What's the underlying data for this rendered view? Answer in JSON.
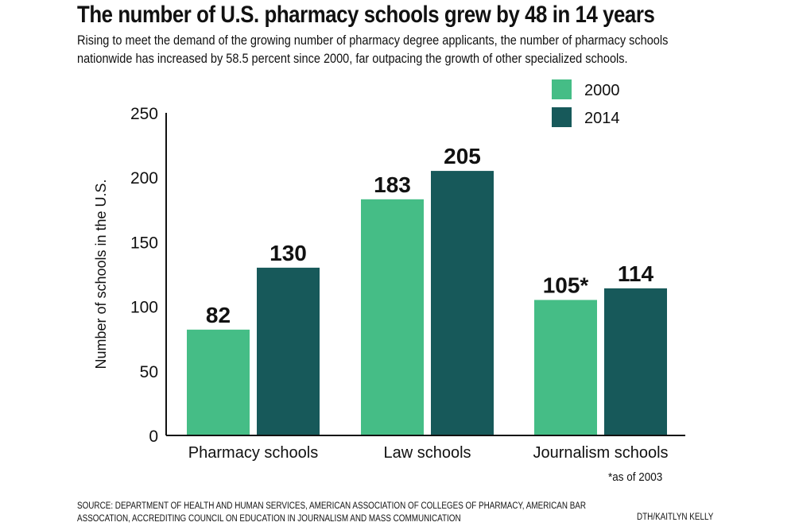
{
  "header": {
    "title": "The number of U.S. pharmacy schools grew by 48 in 14 years",
    "subtitle": "Rising to meet the demand of the growing number of pharmacy degree applicants, the number of pharmacy schools nationwide has increased by 58.5 percent since 2000, far outpacing the growth of other specialized schools."
  },
  "footer": {
    "note": "*as of 2003",
    "source": "SOURCE: DEPARTMENT OF HEALTH AND HUMAN SERVICES, AMERICAN ASSOCIATION OF COLLEGES OF PHARMACY, AMERICAN BAR ASSOCATION, ACCREDITING COUNCIL ON EDUCATION IN JOURNALISM AND MASS COMMUNICATION",
    "credit": "DTH/KAITLYN KELLY"
  },
  "colors": {
    "series_2000": "#45bd86",
    "series_2014": "#17595a"
  },
  "chart_data": {
    "type": "bar",
    "title": "The number of U.S. pharmacy schools grew by 48 in 14 years",
    "xlabel": "",
    "ylabel": "Number of schools in the U.S.",
    "ylim": [
      0,
      250
    ],
    "yticks": [
      0,
      50,
      100,
      150,
      200,
      250
    ],
    "grid": false,
    "legend": "top-right",
    "categories": [
      "Pharmacy schools",
      "Law schools",
      "Journalism schools"
    ],
    "series": [
      {
        "name": "2000",
        "values": [
          82,
          183,
          105
        ],
        "labels": [
          "82",
          "183",
          "105*"
        ]
      },
      {
        "name": "2014",
        "values": [
          130,
          205,
          114
        ],
        "labels": [
          "130",
          "205",
          "114"
        ]
      }
    ]
  }
}
